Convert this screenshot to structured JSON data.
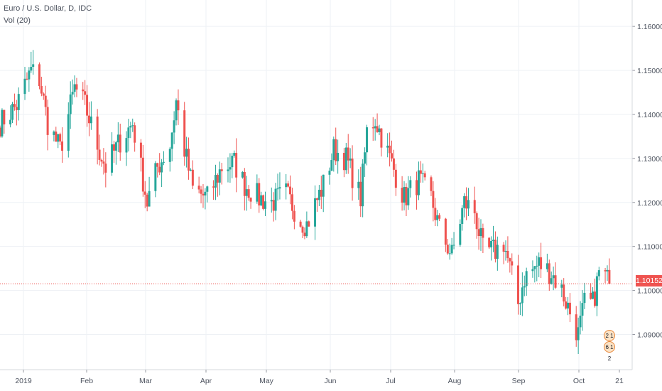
{
  "legend": {
    "title": "Euro / U.S. Dollar, D, IDC",
    "volume": "Vol (20)"
  },
  "last_price": {
    "label": "1.10152",
    "value": 1.10152
  },
  "events": [
    {
      "label": "2 1 2",
      "icon": "calendar-event-icon"
    },
    {
      "label": "6 1 2",
      "icon": "us-flag-event-icon"
    }
  ],
  "colors": {
    "up": "#26a69a",
    "down": "#ef5350",
    "grid": "#eef1f5",
    "text": "#4c525e",
    "price_line": "#ef5350"
  },
  "chart_data": {
    "type": "candlestick",
    "title": "Euro / U.S. Dollar, D, IDC",
    "x_tick_labels": [
      "2019",
      "Feb",
      "Mar",
      "Apr",
      "May",
      "Jun",
      "Jul",
      "Aug",
      "Sep",
      "Oct",
      "21"
    ],
    "y_tick_labels": [
      "1.16000",
      "1.15000",
      "1.14000",
      "1.13000",
      "1.12000",
      "1.11000",
      "1.10000",
      "1.09000"
    ],
    "y_ticks": [
      1.16,
      1.15,
      1.14,
      1.13,
      1.12,
      1.11,
      1.1,
      1.09
    ],
    "ylim": [
      1.082,
      1.166
    ],
    "x_range": [
      "2018-12-26",
      "2019-10-27"
    ],
    "grid": true,
    "close_points": [
      [
        "2018-12-26",
        1.138
      ],
      [
        "2019-01-03",
        1.142
      ],
      [
        "2019-01-10",
        1.15
      ],
      [
        "2019-01-14",
        1.148
      ],
      [
        "2019-01-18",
        1.138
      ],
      [
        "2019-01-24",
        1.132
      ],
      [
        "2019-01-31",
        1.146
      ],
      [
        "2019-02-05",
        1.142
      ],
      [
        "2019-02-11",
        1.133
      ],
      [
        "2019-02-15",
        1.128
      ],
      [
        "2019-02-22",
        1.134
      ],
      [
        "2019-02-28",
        1.138
      ],
      [
        "2019-03-07",
        1.12
      ],
      [
        "2019-03-12",
        1.128
      ],
      [
        "2019-03-18",
        1.133
      ],
      [
        "2019-03-21",
        1.143
      ],
      [
        "2019-03-25",
        1.132
      ],
      [
        "2019-03-29",
        1.123
      ],
      [
        "2019-04-05",
        1.121
      ],
      [
        "2019-04-12",
        1.128
      ],
      [
        "2019-04-18",
        1.129
      ],
      [
        "2019-04-23",
        1.124
      ],
      [
        "2019-04-30",
        1.121
      ],
      [
        "2019-05-06",
        1.12
      ],
      [
        "2019-05-13",
        1.122
      ],
      [
        "2019-05-20",
        1.116
      ],
      [
        "2019-05-23",
        1.115
      ],
      [
        "2019-05-31",
        1.124
      ],
      [
        "2019-06-05",
        1.132
      ],
      [
        "2019-06-11",
        1.13
      ],
      [
        "2019-06-18",
        1.121
      ],
      [
        "2019-06-21",
        1.136
      ],
      [
        "2019-06-25",
        1.139
      ],
      [
        "2019-07-02",
        1.13
      ],
      [
        "2019-07-09",
        1.121
      ],
      [
        "2019-07-16",
        1.125
      ],
      [
        "2019-07-22",
        1.121
      ],
      [
        "2019-07-26",
        1.114
      ],
      [
        "2019-08-01",
        1.108
      ],
      [
        "2019-08-07",
        1.12
      ],
      [
        "2019-08-12",
        1.118
      ],
      [
        "2019-08-16",
        1.109
      ],
      [
        "2019-08-22",
        1.109
      ],
      [
        "2019-08-26",
        1.111
      ],
      [
        "2019-09-02",
        1.097
      ],
      [
        "2019-09-05",
        1.103
      ],
      [
        "2019-09-12",
        1.106
      ],
      [
        "2019-09-18",
        1.104
      ],
      [
        "2019-09-23",
        1.1
      ],
      [
        "2019-10-01",
        1.09
      ],
      [
        "2019-10-04",
        1.097
      ],
      [
        "2019-10-08",
        1.097
      ],
      [
        "2019-10-11",
        1.104
      ],
      [
        "2019-10-14",
        1.103
      ],
      [
        "2019-10-16",
        1.1015
      ]
    ],
    "last_close": 1.10152
  }
}
